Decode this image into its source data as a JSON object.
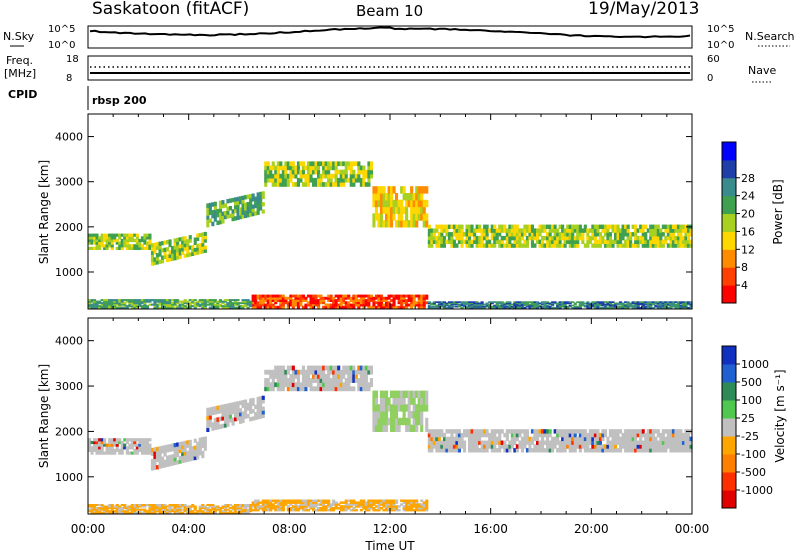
{
  "header": {
    "station": "Saskatoon (fitACF)",
    "beam": "Beam 10",
    "date": "19/May/2013"
  },
  "top_panels": {
    "nsky_label": "N.Sky",
    "nsky_ticks": [
      "10^5",
      "10^0"
    ],
    "nsearch_label": "N.Search",
    "nsearch_ticks": [
      "10^5",
      "10^0"
    ],
    "freq_label": "Freq.",
    "freq_unit": "[MHz]",
    "freq_ticks": [
      "18",
      "8"
    ],
    "nave_label": "Nave",
    "nave_ticks": [
      "60",
      "0"
    ],
    "cpid_label": "CPID",
    "cpid_value": "rbsp 200"
  },
  "chart_data": [
    {
      "type": "heatmap",
      "name": "power-panel",
      "ylabel": "Slant Range [km]",
      "xlabel": "Time UT",
      "x_ticks": [
        "00:00",
        "04:00",
        "08:00",
        "12:00",
        "16:00",
        "20:00",
        "00:00"
      ],
      "y_ticks": [
        1000,
        2000,
        3000,
        4000
      ],
      "ylim": [
        180,
        4500
      ],
      "xlim_hours": [
        0,
        24
      ],
      "colorbar": {
        "label": "Power [dB]",
        "ticks": [
          "4",
          "8",
          "12",
          "16",
          "20",
          "24",
          "28"
        ],
        "colors": [
          "#0000ff",
          "#1e3fa8",
          "#3a8c8c",
          "#3fa050",
          "#a8d020",
          "#ffd700",
          "#ff8c00",
          "#ff4000",
          "#ff0000"
        ]
      },
      "echo_bands": [
        {
          "t": [
            0,
            2.5
          ],
          "r": [
            1500,
            1850
          ],
          "level": 4
        },
        {
          "t": [
            2.5,
            4.7
          ],
          "r": [
            1150,
            1900
          ],
          "level": 4
        },
        {
          "t": [
            4.7,
            7.0
          ],
          "r": [
            2000,
            2800
          ],
          "level": 3
        },
        {
          "t": [
            7.0,
            11.3
          ],
          "r": [
            2900,
            3450
          ],
          "level": 4
        },
        {
          "t": [
            11.3,
            13.5
          ],
          "r": [
            2000,
            2900
          ],
          "level": 5
        },
        {
          "t": [
            13.5,
            24
          ],
          "r": [
            1550,
            2050
          ],
          "level": 4
        },
        {
          "t": [
            6.5,
            13.5
          ],
          "r": [
            200,
            500
          ],
          "level": 7
        },
        {
          "t": [
            0,
            6.5
          ],
          "r": [
            200,
            400
          ],
          "level": 3
        },
        {
          "t": [
            13.5,
            24
          ],
          "r": [
            200,
            350
          ],
          "level": 2
        }
      ]
    },
    {
      "type": "heatmap",
      "name": "velocity-panel",
      "ylabel": "Slant Range [km]",
      "xlabel": "Time UT",
      "x_ticks": [
        "00:00",
        "04:00",
        "08:00",
        "12:00",
        "16:00",
        "20:00",
        "00:00"
      ],
      "y_ticks": [
        1000,
        2000,
        3000,
        4000
      ],
      "ylim": [
        180,
        4500
      ],
      "xlim_hours": [
        0,
        24
      ],
      "colorbar": {
        "label": "Velocity [m s⁻¹]",
        "ticks": [
          "1000",
          "500",
          "100",
          "25",
          "-25",
          "-100",
          "-500",
          "-1000"
        ],
        "colors": [
          "#1030c0",
          "#2060d0",
          "#2e8b57",
          "#50c850",
          "#c0c0c0",
          "#ffa500",
          "#ff7f00",
          "#ff3000",
          "#e00000"
        ]
      },
      "echo_bands": [
        {
          "t": [
            0,
            2.5
          ],
          "r": [
            1500,
            1850
          ],
          "level": "gray"
        },
        {
          "t": [
            2.5,
            4.7
          ],
          "r": [
            1150,
            1900
          ],
          "level": "gray"
        },
        {
          "t": [
            4.7,
            7.0
          ],
          "r": [
            2000,
            2800
          ],
          "level": "gray"
        },
        {
          "t": [
            7.0,
            11.3
          ],
          "r": [
            2900,
            3450
          ],
          "level": "gray"
        },
        {
          "t": [
            11.3,
            13.5
          ],
          "r": [
            2000,
            2900
          ],
          "level": "green"
        },
        {
          "t": [
            13.5,
            24
          ],
          "r": [
            1550,
            2050
          ],
          "level": "gray"
        },
        {
          "t": [
            0,
            6.5
          ],
          "r": [
            200,
            400
          ],
          "level": "orange"
        },
        {
          "t": [
            6.5,
            13.5
          ],
          "r": [
            250,
            500
          ],
          "level": "orange"
        }
      ]
    }
  ]
}
